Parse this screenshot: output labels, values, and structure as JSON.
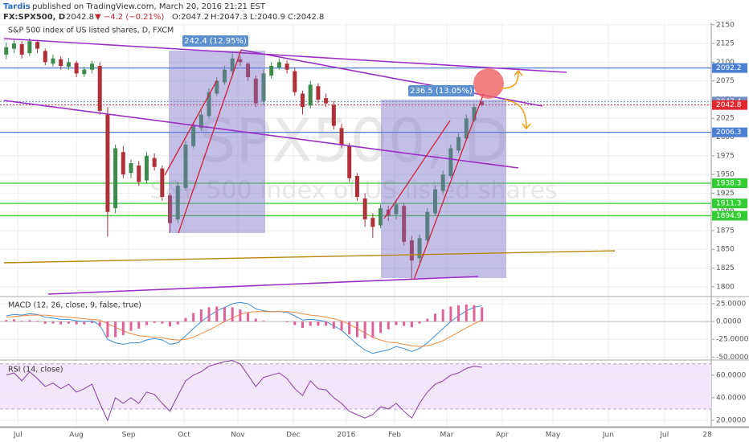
{
  "header": {
    "author": "Tardis",
    "published": "published on TradingView.com, March 20, 2016 21:21 EST",
    "symbol": "FX:SPX500, D",
    "last": "2042.8",
    "change": "▼ −4.2 (−0.21%)",
    "open": "O:2047.2",
    "high": "H:2047.3",
    "low": "L:2040.9",
    "close": "C:2042.8"
  },
  "chart_data": [
    {
      "type": "candlestick",
      "title": "S&P 500 index of US listed shares, D, FXCM",
      "watermark": "SPX500, D",
      "watermark_sub": "S&P 500 index of US listed shares",
      "up_color": "#3d8a4a",
      "down_color": "#b03038",
      "xlim": [
        -0.8,
        90.4
      ],
      "xticks": [
        {
          "value": 1.5,
          "label": "Jul"
        },
        {
          "value": 9,
          "label": "Aug"
        },
        {
          "value": 15.7,
          "label": "Sep"
        },
        {
          "value": 22.8,
          "label": "Oct"
        },
        {
          "value": 29.7,
          "label": "Nov"
        },
        {
          "value": 36.8,
          "label": "Dec"
        },
        {
          "value": 43.6,
          "label": "2016"
        },
        {
          "value": 49.8,
          "label": "Feb"
        },
        {
          "value": 56.5,
          "label": "Mar"
        },
        {
          "value": 63.6,
          "label": "Apr"
        },
        {
          "value": 70.1,
          "label": "May"
        },
        {
          "value": 77.2,
          "label": "Jun"
        },
        {
          "value": 84.4,
          "label": "Jul"
        },
        {
          "value": 89.9,
          "label": "28"
        }
      ],
      "ylim": [
        1788,
        2153
      ],
      "yticks": [
        2150,
        2125,
        2100,
        2075,
        2050,
        2025,
        2000,
        1975,
        1950,
        1925,
        1900,
        1875,
        1850,
        1825,
        1800
      ],
      "grid": true,
      "open": [
        2110,
        2118,
        2124,
        2112,
        2127,
        2115,
        2098,
        2104,
        2094,
        2099,
        2084,
        2090,
        2095,
        2030,
        1905,
        1980,
        1952,
        1962,
        1942,
        1972,
        1958,
        1922,
        1890,
        1932,
        1988,
        2012,
        2028,
        2058,
        2073,
        2088,
        2104,
        2098,
        2078,
        2048,
        2082,
        2093,
        2098,
        2088,
        2058,
        2042,
        2068,
        2052,
        2043,
        2012,
        1988,
        1948,
        1918,
        1892,
        1882,
        1903,
        1897,
        1908,
        1862,
        1838,
        1862,
        1898,
        1928,
        1948,
        1982,
        1998,
        2022,
        2047.2
      ],
      "high": [
        2126,
        2130,
        2128,
        2132,
        2130,
        2118,
        2110,
        2108,
        2106,
        2102,
        2094,
        2102,
        2100,
        2040,
        1990,
        1988,
        1970,
        1968,
        1980,
        1978,
        1962,
        1925,
        1940,
        1995,
        2020,
        2035,
        2065,
        2080,
        2095,
        2112,
        2108,
        2100,
        2082,
        2090,
        2100,
        2105,
        2102,
        2092,
        2062,
        2075,
        2072,
        2058,
        2048,
        2018,
        1992,
        1952,
        1925,
        1898,
        1910,
        1908,
        1915,
        1912,
        1868,
        1870,
        1905,
        1935,
        1955,
        1990,
        2005,
        2030,
        2045,
        2047.3
      ],
      "low": [
        2104,
        2112,
        2105,
        2108,
        2112,
        2096,
        2094,
        2090,
        2090,
        2080,
        2080,
        2085,
        2030,
        1867,
        1898,
        1945,
        1945,
        1935,
        1938,
        1955,
        1915,
        1872,
        1885,
        1928,
        1985,
        2008,
        2025,
        2055,
        2070,
        2085,
        2095,
        2075,
        2040,
        2042,
        2078,
        2090,
        2085,
        2055,
        2030,
        2038,
        2045,
        2040,
        2010,
        1985,
        1940,
        1915,
        1880,
        1865,
        1878,
        1888,
        1890,
        1855,
        1810,
        1832,
        1858,
        1895,
        1925,
        1945,
        1978,
        1995,
        2020,
        2040.9
      ],
      "close": [
        2120,
        2125,
        2110,
        2128,
        2118,
        2100,
        2105,
        2095,
        2100,
        2085,
        2090,
        2098,
        2035,
        1900,
        1985,
        1950,
        1965,
        1940,
        1975,
        1960,
        1920,
        1885,
        1935,
        1990,
        2015,
        2030,
        2060,
        2075,
        2090,
        2105,
        2100,
        2080,
        2045,
        2085,
        2095,
        2100,
        2090,
        2060,
        2040,
        2070,
        2050,
        2045,
        2015,
        1990,
        1945,
        1920,
        1890,
        1880,
        1905,
        1895,
        1910,
        1860,
        1835,
        1865,
        1900,
        1930,
        1950,
        1985,
        2000,
        2025,
        2040,
        2042.8
      ],
      "levels": [
        {
          "value": 2092.2,
          "color": "#4a7fd4",
          "line": "solid"
        },
        {
          "value": 2047.4,
          "color": "#6f8fc4",
          "line": "dotted"
        },
        {
          "value": 2042.8,
          "color": "#e0282e",
          "line": "dotted"
        },
        {
          "value": 2006.3,
          "color": "#4a7fd4",
          "line": "solid"
        },
        {
          "value": 1938.3,
          "color": "#33cc33",
          "line": "solid"
        },
        {
          "value": 1911.3,
          "color": "#33cc33",
          "line": "solid"
        },
        {
          "value": 1894.9,
          "color": "#33cc33",
          "line": "solid"
        }
      ],
      "annotations": [
        "242.4 (12.95%)",
        "236.5 (13.05%)"
      ]
    },
    {
      "type": "macd",
      "title": "MACD (12, 26, close, 9, false, true)",
      "ylim": [
        -53,
        34
      ],
      "yticks": [
        {
          "value": 25,
          "label": "25.0000"
        },
        {
          "value": 0,
          "label": "0.0000"
        },
        {
          "value": -25,
          "label": "-25.0000"
        },
        {
          "value": -50,
          "label": "-50.0000"
        }
      ],
      "series": [
        {
          "name": "MACD",
          "color": "#3a8fd6",
          "values": [
            8,
            10,
            9,
            11,
            10,
            6,
            5,
            3,
            3,
            1,
            0,
            1,
            -5,
            -25,
            -30,
            -32,
            -30,
            -30,
            -26,
            -24,
            -26,
            -32,
            -30,
            -20,
            -10,
            0,
            8,
            15,
            20,
            25,
            27,
            25,
            18,
            15,
            14,
            14,
            13,
            8,
            2,
            3,
            2,
            0,
            -6,
            -12,
            -22,
            -32,
            -40,
            -45,
            -42,
            -40,
            -35,
            -38,
            -42,
            -38,
            -30,
            -20,
            -10,
            0,
            8,
            15,
            20,
            22
          ]
        },
        {
          "name": "Signal",
          "color": "#f08a3c",
          "values": [
            6,
            7,
            8,
            9,
            9,
            9,
            8,
            7,
            6,
            5,
            4,
            3,
            2,
            -3,
            -8,
            -13,
            -17,
            -20,
            -21,
            -22,
            -23,
            -25,
            -26,
            -25,
            -22,
            -17,
            -12,
            -6,
            0,
            5,
            10,
            13,
            14,
            14,
            14,
            14,
            14,
            13,
            11,
            9,
            8,
            6,
            4,
            1,
            -4,
            -10,
            -16,
            -22,
            -26,
            -29,
            -30,
            -32,
            -34,
            -35,
            -34,
            -31,
            -27,
            -21,
            -15,
            -9,
            -3,
            2
          ]
        },
        {
          "name": "Histogram",
          "color": "#e0609a",
          "values": [
            2,
            3,
            1,
            2,
            1,
            -3,
            -3,
            -4,
            -3,
            -4,
            -4,
            -2,
            -7,
            -22,
            -22,
            -19,
            -13,
            -10,
            -5,
            -2,
            -3,
            -7,
            -4,
            5,
            12,
            17,
            20,
            21,
            20,
            20,
            17,
            12,
            4,
            1,
            0,
            0,
            -1,
            -5,
            -9,
            -6,
            -6,
            -6,
            -10,
            -13,
            -18,
            -22,
            -24,
            -23,
            -16,
            -11,
            -5,
            -6,
            -8,
            -3,
            4,
            11,
            17,
            21,
            23,
            24,
            23,
            20
          ]
        }
      ]
    },
    {
      "type": "rsi",
      "title": "RSI (14, close)",
      "ylim": [
        15,
        72
      ],
      "yticks": [
        {
          "value": 60,
          "label": "60.0000"
        },
        {
          "value": 40,
          "label": "40.0000"
        },
        {
          "value": 20,
          "label": "20.0000"
        }
      ],
      "series": [
        {
          "name": "RSI",
          "color": "#8a3aa8",
          "values": [
            60,
            62,
            55,
            63,
            57,
            50,
            53,
            48,
            52,
            45,
            48,
            52,
            35,
            20,
            40,
            35,
            40,
            35,
            45,
            43,
            35,
            28,
            42,
            55,
            60,
            63,
            68,
            70,
            72,
            73,
            70,
            60,
            50,
            58,
            60,
            62,
            57,
            48,
            42,
            55,
            48,
            47,
            40,
            35,
            28,
            25,
            22,
            25,
            32,
            30,
            35,
            28,
            22,
            35,
            45,
            52,
            55,
            60,
            62,
            66,
            68,
            67
          ]
        }
      ]
    }
  ]
}
